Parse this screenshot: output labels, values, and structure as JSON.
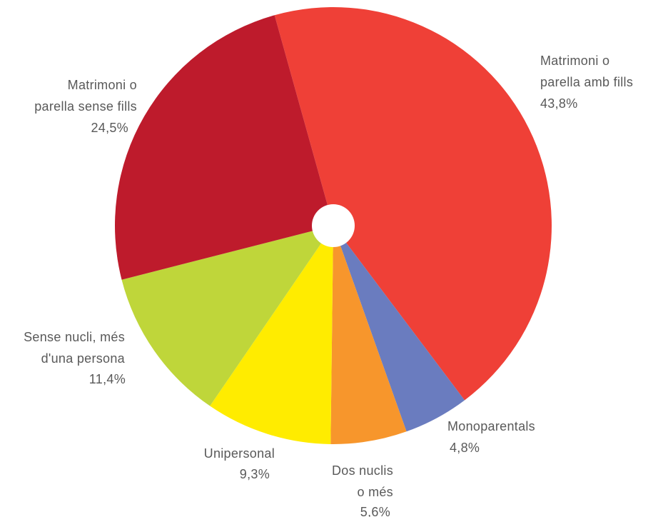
{
  "chart_data": {
    "type": "pie",
    "categories": [
      [
        "Matrimoni o",
        "parella amb fills"
      ],
      [
        "Monoparentals"
      ],
      [
        "Dos nuclis",
        "o més"
      ],
      [
        "Unipersonal"
      ],
      [
        "Sense nucli, més",
        "d'una persona"
      ],
      [
        "Matrimoni o",
        "parella sense fills"
      ]
    ],
    "values": [
      43.8,
      4.8,
      5.6,
      9.3,
      11.4,
      24.5
    ],
    "value_labels": [
      "43,8%",
      "4,8%",
      "5,6%",
      "9,3%",
      "11,4%",
      "24,5%"
    ],
    "colors": [
      "#ef4037",
      "#6a7cbf",
      "#f7962c",
      "#ffec00",
      "#bfd63a",
      "#be1b2c"
    ]
  }
}
